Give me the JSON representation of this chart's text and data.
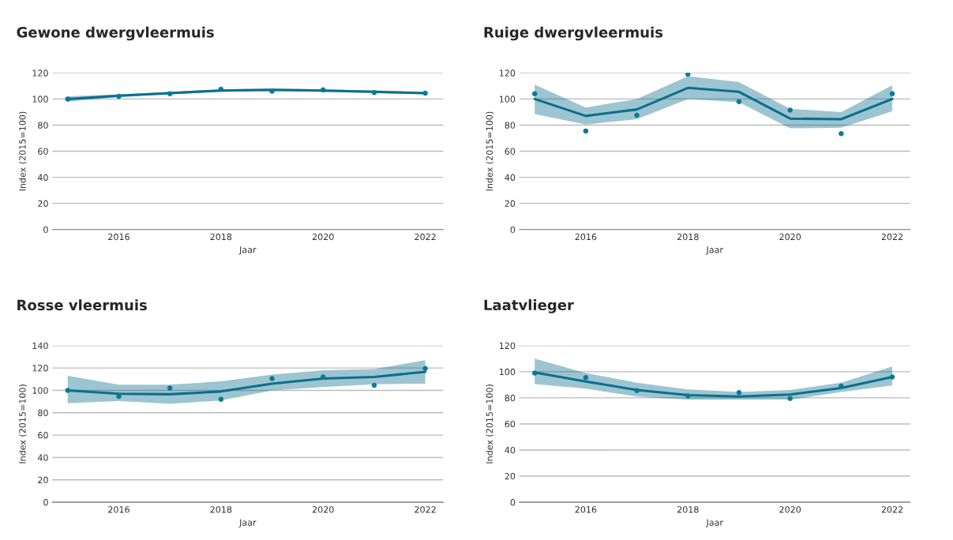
{
  "chart_data": [
    {
      "type": "line",
      "title": "Gewone dwergvleermuis",
      "xlabel": "Jaar",
      "ylabel": "Index (2015=100)",
      "x": [
        2015,
        2016,
        2017,
        2018,
        2019,
        2020,
        2021,
        2022
      ],
      "xlim": [
        2014.7,
        2022.35
      ],
      "xticks": [
        2016,
        2018,
        2020,
        2022
      ],
      "ylim": [
        0,
        120
      ],
      "yticks": [
        0,
        20,
        40,
        60,
        80,
        100,
        120
      ],
      "grid": "y",
      "series": [
        {
          "color": "#0b6f8c",
          "marker": "none",
          "values": [
            100,
            102.5,
            104.5,
            106.5,
            107,
            106.5,
            105.5,
            104.5
          ],
          "lower": [
            98,
            101.5,
            103.5,
            105.5,
            106,
            105.5,
            104.5,
            103.5
          ],
          "upper": [
            102,
            103.5,
            105.5,
            107.5,
            108,
            107.5,
            106.5,
            105.5
          ]
        },
        {
          "type": "scatter",
          "color": "#0b7a94",
          "marker": "circle",
          "values": [
            100,
            102,
            104,
            107.5,
            106,
            107,
            105,
            104.5
          ]
        }
      ]
    },
    {
      "type": "line",
      "title": "Ruige dwergvleermuis",
      "xlabel": "Jaar",
      "ylabel": "Index (2015=100)",
      "x": [
        2015,
        2016,
        2017,
        2018,
        2019,
        2020,
        2021,
        2022
      ],
      "xlim": [
        2014.7,
        2022.35
      ],
      "xticks": [
        2016,
        2018,
        2020,
        2022
      ],
      "ylim": [
        0,
        120
      ],
      "yticks": [
        0,
        20,
        40,
        60,
        80,
        100,
        120
      ],
      "grid": "y",
      "series": [
        {
          "color": "#0b6f8c",
          "marker": "none",
          "values": [
            100,
            87,
            92,
            108.5,
            105.5,
            85,
            84.5,
            100
          ],
          "lower": [
            88.5,
            80.5,
            84.5,
            100,
            97.5,
            77.5,
            78,
            90.5
          ],
          "upper": [
            111,
            93.5,
            100,
            117.5,
            113,
            92.5,
            90,
            110.5
          ]
        },
        {
          "type": "scatter",
          "color": "#0b7a94",
          "marker": "circle",
          "values": [
            104,
            75.5,
            87.5,
            119,
            98,
            91.5,
            73.5,
            104
          ]
        }
      ]
    },
    {
      "type": "line",
      "title": "Rosse vleermuis",
      "xlabel": "Jaar",
      "ylabel": "Index (2015=100)",
      "x": [
        2015,
        2016,
        2017,
        2018,
        2019,
        2020,
        2021,
        2022
      ],
      "xlim": [
        2014.7,
        2022.35
      ],
      "xticks": [
        2016,
        2018,
        2020,
        2022
      ],
      "ylim": [
        0,
        140
      ],
      "yticks": [
        0,
        20,
        40,
        60,
        80,
        100,
        120,
        140
      ],
      "grid": "y",
      "series": [
        {
          "color": "#0b6f8c",
          "marker": "none",
          "values": [
            100,
            97,
            96.5,
            99,
            106,
            110.5,
            112,
            116.5
          ],
          "lower": [
            88.5,
            90.5,
            88,
            91,
            100,
            103,
            105.5,
            106
          ],
          "upper": [
            113,
            105,
            105,
            108,
            114,
            118,
            119,
            127
          ]
        },
        {
          "type": "scatter",
          "color": "#0b7a94",
          "marker": "circle",
          "values": [
            100,
            94.5,
            102,
            92,
            110.5,
            112,
            104.5,
            119.5
          ]
        }
      ]
    },
    {
      "type": "line",
      "title": "Laatvlieger",
      "xlabel": "Jaar",
      "ylabel": "Index (2015=100)",
      "x": [
        2015,
        2016,
        2017,
        2018,
        2019,
        2020,
        2021,
        2022
      ],
      "xlim": [
        2014.7,
        2022.35
      ],
      "xticks": [
        2016,
        2018,
        2020,
        2022
      ],
      "ylim": [
        0,
        120
      ],
      "yticks": [
        0,
        20,
        40,
        60,
        80,
        100,
        120
      ],
      "grid": "y",
      "series": [
        {
          "color": "#0b6f8c",
          "marker": "none",
          "values": [
            99.5,
            92.5,
            86,
            82,
            81,
            82.5,
            87.5,
            96
          ],
          "lower": [
            90.5,
            87,
            81,
            78.5,
            78.5,
            78.5,
            84.5,
            89.5
          ],
          "upper": [
            110,
            99,
            91.5,
            86.5,
            84.5,
            86,
            91.5,
            104
          ]
        },
        {
          "type": "scatter",
          "color": "#0b7a94",
          "marker": "circle",
          "values": [
            99,
            95.5,
            85.5,
            81.5,
            84,
            79.5,
            89,
            96
          ]
        }
      ]
    }
  ]
}
